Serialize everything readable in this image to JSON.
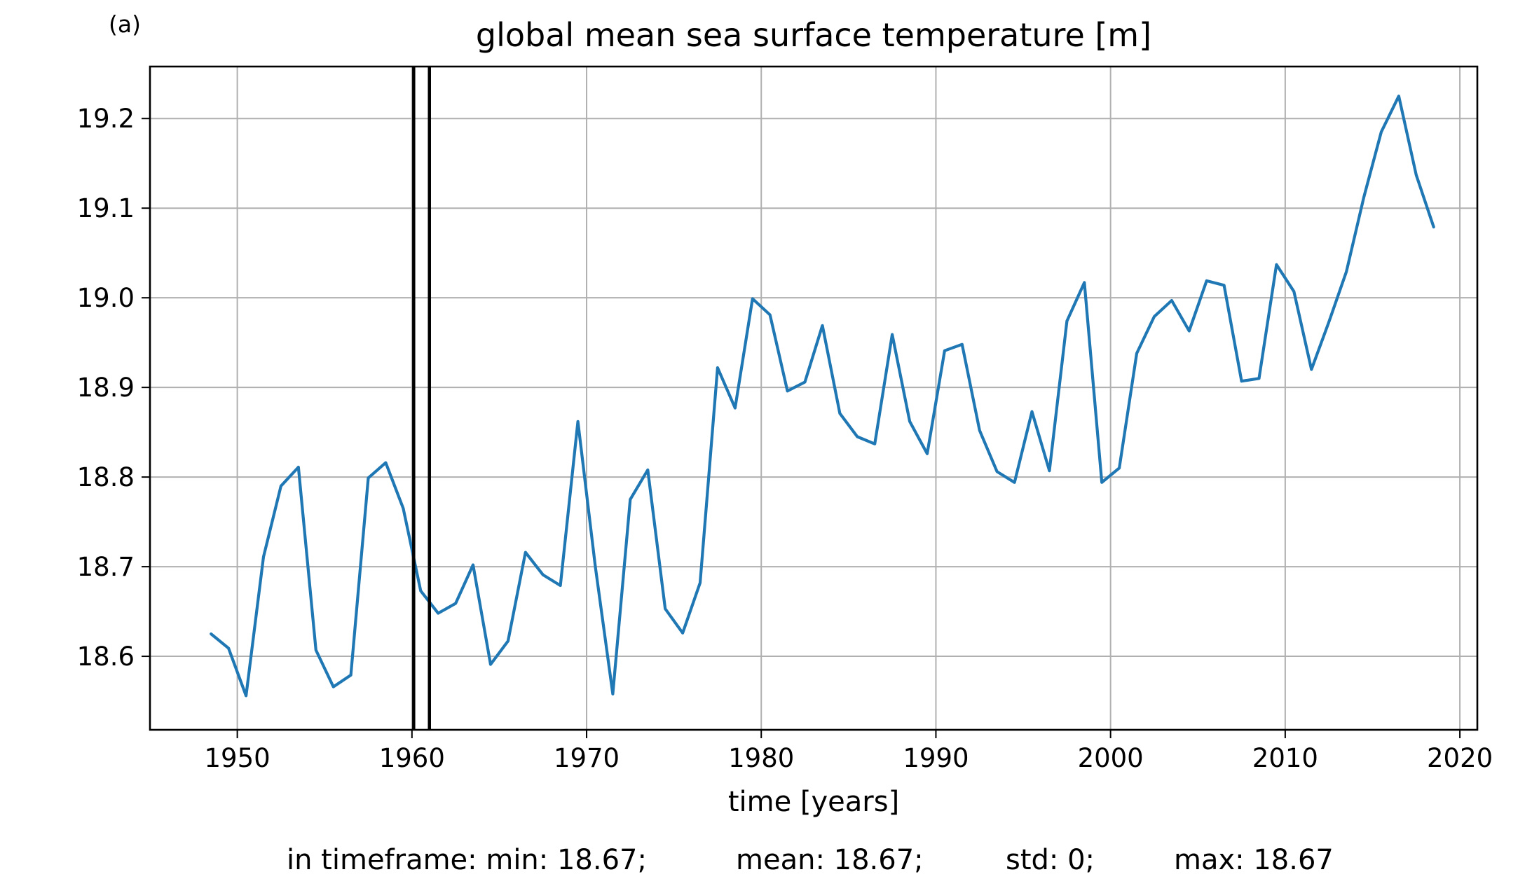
{
  "panel_label": "(a)",
  "chart_data": {
    "type": "line",
    "title": "global mean sea surface temperature [m]",
    "xlabel": "time [years]",
    "ylabel": "",
    "xlim": [
      1945,
      2021
    ],
    "ylim": [
      18.518,
      19.258
    ],
    "xticks": [
      1950,
      1960,
      1970,
      1980,
      1990,
      2000,
      2010,
      2020
    ],
    "yticks": [
      18.6,
      18.7,
      18.8,
      18.9,
      19.0,
      19.1,
      19.2
    ],
    "ytick_labels": [
      "18.6",
      "18.7",
      "18.8",
      "18.9",
      "19.0",
      "19.1",
      "19.2"
    ],
    "grid": true,
    "series_color": "#1f77b4",
    "marker_color": "#000000",
    "x": [
      1948.5,
      1949.5,
      1950.5,
      1951.5,
      1952.5,
      1953.5,
      1954.5,
      1955.5,
      1956.5,
      1957.5,
      1958.5,
      1959.5,
      1960.5,
      1961.5,
      1962.5,
      1963.5,
      1964.5,
      1965.5,
      1966.5,
      1967.5,
      1968.5,
      1969.5,
      1970.5,
      1971.5,
      1972.5,
      1973.5,
      1974.5,
      1975.5,
      1976.5,
      1977.5,
      1978.5,
      1979.5,
      1980.5,
      1981.5,
      1982.5,
      1983.5,
      1984.5,
      1985.5,
      1986.5,
      1987.5,
      1988.5,
      1989.5,
      1990.5,
      1991.5,
      1992.5,
      1993.5,
      1994.5,
      1995.5,
      1996.5,
      1997.5,
      1998.5,
      1999.5,
      2000.5,
      2001.5,
      2002.5,
      2003.5,
      2004.5,
      2005.5,
      2006.5,
      2007.5,
      2008.5,
      2009.5,
      2010.5,
      2011.5,
      2012.5,
      2013.5,
      2014.5,
      2015.5,
      2016.5,
      2017.5,
      2018.5
    ],
    "series": [
      {
        "values": [
          18.625,
          18.609,
          18.556,
          18.711,
          18.79,
          18.811,
          18.607,
          18.566,
          18.579,
          18.799,
          18.816,
          18.765,
          18.673,
          18.648,
          18.659,
          18.702,
          18.591,
          18.617,
          18.716,
          18.691,
          18.679,
          18.862,
          18.7,
          18.558,
          18.775,
          18.808,
          18.653,
          18.626,
          18.682,
          18.922,
          18.877,
          18.999,
          18.981,
          18.896,
          18.906,
          18.969,
          18.871,
          18.845,
          18.837,
          18.959,
          18.862,
          18.826,
          18.941,
          18.948,
          18.852,
          18.806,
          18.794,
          18.873,
          18.807,
          18.974,
          19.017,
          18.794,
          18.81,
          18.938,
          18.979,
          18.997,
          18.963,
          19.019,
          19.014,
          18.907,
          18.91,
          19.037,
          19.007,
          18.92,
          18.973,
          19.029,
          19.112,
          19.185,
          19.225,
          19.137,
          19.079
        ]
      }
    ],
    "vlines": [
      1960.1,
      1961.0
    ]
  },
  "footer": {
    "min_text": "in timeframe: min: 18.67;",
    "mean_text": "mean: 18.67;",
    "std_text": "std: 0;",
    "max_text": "max: 18.67"
  }
}
